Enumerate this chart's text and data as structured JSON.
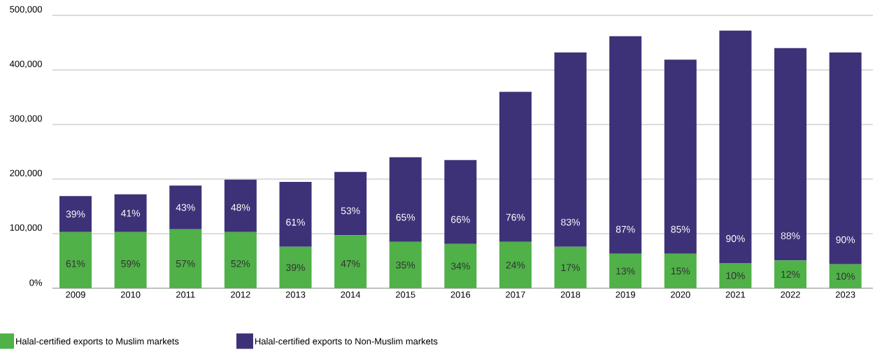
{
  "chart_data": {
    "type": "bar",
    "stacked": true,
    "categories": [
      "2009",
      "2010",
      "2011",
      "2012",
      "2013",
      "2014",
      "2015",
      "2016",
      "2017",
      "2018",
      "2019",
      "2020",
      "2021",
      "2022",
      "2023"
    ],
    "series": [
      {
        "name": "Halal-certified exports to Muslim markets",
        "color": "#4fb148",
        "values": [
          103000,
          103000,
          108000,
          103000,
          76000,
          97000,
          85000,
          81000,
          85000,
          76000,
          63000,
          63000,
          46000,
          51000,
          44000
        ]
      },
      {
        "name": "Halal-certified exports to Non-Muslim markets",
        "color": "#3d3278",
        "values": [
          66000,
          69000,
          80000,
          96000,
          119000,
          116000,
          155000,
          154000,
          275000,
          356000,
          399000,
          356000,
          426000,
          389000,
          388000
        ]
      }
    ],
    "annotations": [
      "61%",
      "59%",
      "57%",
      "52%",
      "39%",
      "47%",
      "35%",
      "34%",
      "24%",
      "17%",
      "13%",
      "15%",
      "10%",
      "12%",
      "10%",
      "39%",
      "41%",
      "43%",
      "48%",
      "61%",
      "53%",
      "65%",
      "66%",
      "76%",
      "83%",
      "87%",
      "85%",
      "90%",
      "88%",
      "90%"
    ],
    "ylim": [
      0,
      500000
    ],
    "yticks": [
      {
        "value": 0,
        "label": "0%"
      },
      {
        "value": 100000,
        "label": "100,000"
      },
      {
        "value": 200000,
        "label": "200,000"
      },
      {
        "value": 300000,
        "label": "300,000"
      },
      {
        "value": 400000,
        "label": "400,000"
      },
      {
        "value": 500000,
        "label": "500,000"
      }
    ],
    "grid": "y",
    "legend": "bottom"
  }
}
